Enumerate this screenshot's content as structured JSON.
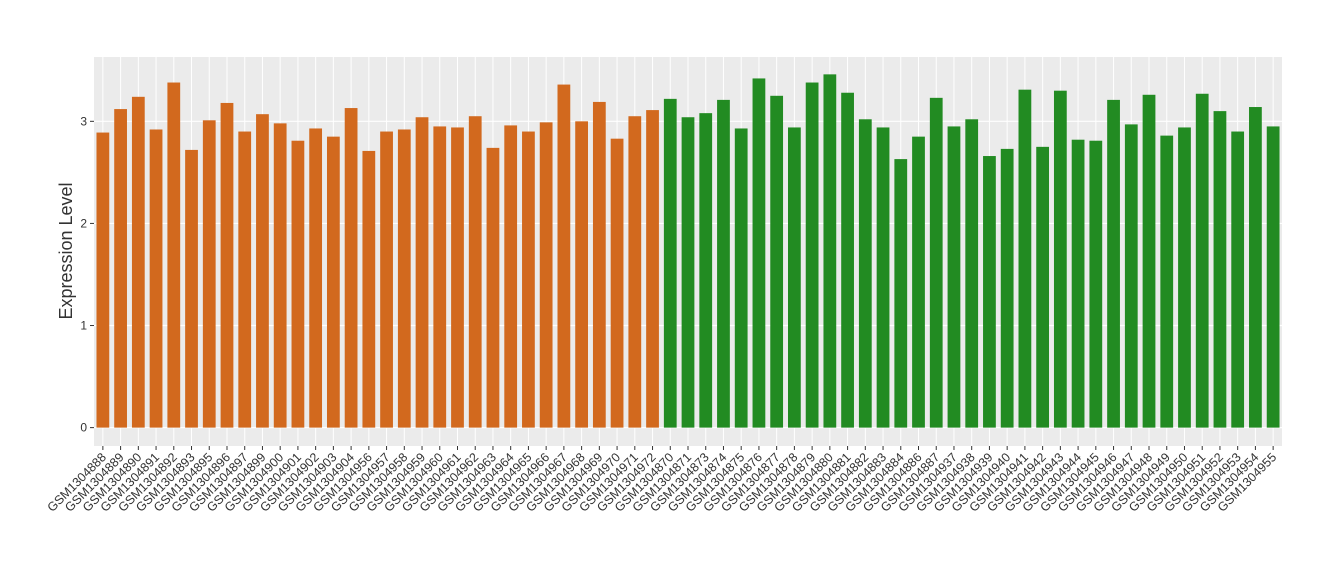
{
  "chart_data": {
    "type": "bar",
    "y_label": "Expression Level",
    "ylim": [
      -0.18,
      3.63
    ],
    "yticks": [
      0,
      1,
      2,
      3
    ],
    "grid": true,
    "groups": [
      {
        "color": "#d2691e",
        "categories": [
          "GSM1304888",
          "GSM1304889",
          "GSM1304890",
          "GSM1304891",
          "GSM1304892",
          "GSM1304893",
          "GSM1304895",
          "GSM1304896",
          "GSM1304897",
          "GSM1304899",
          "GSM1304900",
          "GSM1304901",
          "GSM1304902",
          "GSM1304903",
          "GSM1304904",
          "GSM1304956",
          "GSM1304957",
          "GSM1304958",
          "GSM1304959",
          "GSM1304960",
          "GSM1304961",
          "GSM1304962",
          "GSM1304963",
          "GSM1304964",
          "GSM1304965",
          "GSM1304966",
          "GSM1304967",
          "GSM1304968",
          "GSM1304969",
          "GSM1304970",
          "GSM1304971",
          "GSM1304972"
        ],
        "values": [
          2.89,
          3.12,
          3.24,
          2.92,
          3.38,
          2.72,
          3.01,
          3.18,
          2.9,
          3.07,
          2.98,
          2.81,
          2.93,
          2.85,
          3.13,
          2.71,
          2.9,
          2.92,
          3.04,
          2.95,
          2.94,
          3.05,
          2.74,
          2.96,
          2.9,
          2.99,
          3.36,
          3.0,
          3.19,
          2.83,
          3.05,
          3.11
        ]
      },
      {
        "color": "#228b22",
        "categories": [
          "GSM1304870",
          "GSM1304871",
          "GSM1304873",
          "GSM1304874",
          "GSM1304875",
          "GSM1304876",
          "GSM1304877",
          "GSM1304878",
          "GSM1304879",
          "GSM1304880",
          "GSM1304881",
          "GSM1304882",
          "GSM1304883",
          "GSM1304884",
          "GSM1304886",
          "GSM1304887",
          "GSM1304937",
          "GSM1304938",
          "GSM1304939",
          "GSM1304940",
          "GSM1304941",
          "GSM1304942",
          "GSM1304943",
          "GSM1304944",
          "GSM1304945",
          "GSM1304946",
          "GSM1304947",
          "GSM1304948",
          "GSM1304949",
          "GSM1304950",
          "GSM1304951",
          "GSM1304952",
          "GSM1304953",
          "GSM1304954",
          "GSM1304955"
        ],
        "values": [
          3.22,
          3.04,
          3.08,
          3.21,
          2.93,
          3.42,
          3.25,
          2.94,
          3.38,
          3.46,
          3.28,
          3.02,
          2.94,
          2.63,
          2.85,
          3.23,
          2.95,
          3.02,
          2.66,
          2.73,
          3.31,
          2.75,
          3.3,
          2.82,
          2.81,
          3.21,
          2.97,
          3.26,
          2.86,
          2.94,
          3.27,
          3.1,
          2.9,
          3.14,
          2.95
        ]
      }
    ]
  }
}
